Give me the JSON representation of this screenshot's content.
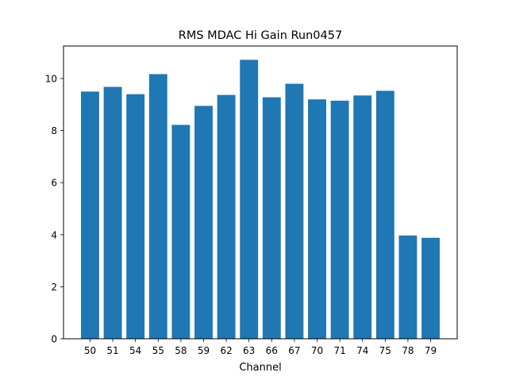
{
  "chart_data": {
    "type": "bar",
    "title": "RMS MDAC Hi Gain Run0457",
    "xlabel": "Channel",
    "ylabel": "",
    "categories": [
      "50",
      "51",
      "54",
      "55",
      "58",
      "59",
      "62",
      "63",
      "66",
      "67",
      "70",
      "71",
      "74",
      "75",
      "78",
      "79"
    ],
    "values": [
      9.5,
      9.68,
      9.4,
      10.17,
      8.22,
      8.95,
      9.37,
      10.72,
      9.28,
      9.8,
      9.2,
      9.15,
      9.35,
      9.53,
      3.97,
      3.88
    ],
    "ylim": [
      0,
      11.25
    ],
    "yticks": [
      "0",
      "2",
      "4",
      "6",
      "8",
      "10"
    ],
    "grid": false,
    "legend": "none",
    "bar_color": "#1f77b4"
  }
}
